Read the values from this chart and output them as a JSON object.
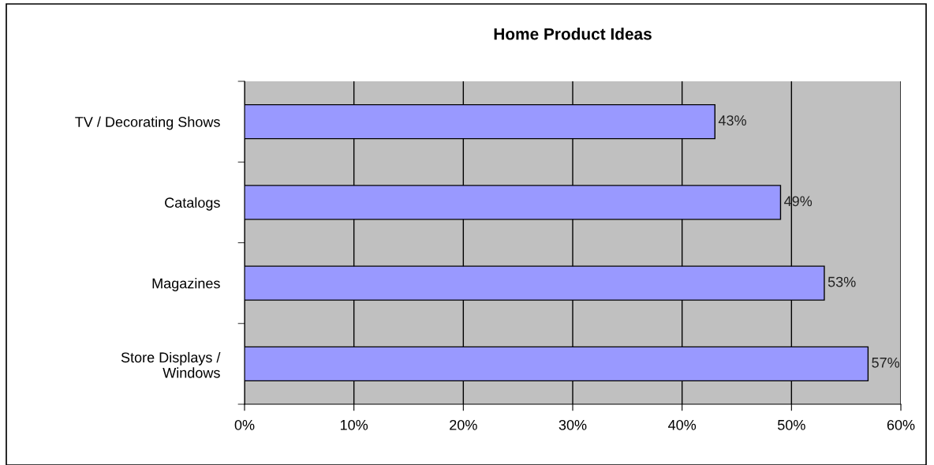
{
  "chart_data": {
    "type": "bar",
    "orientation": "horizontal",
    "title": "Home Product Ideas",
    "categories": [
      "TV / Decorating Shows",
      "Catalogs",
      "Magazines",
      "Store Displays /\nWindows"
    ],
    "values": [
      43,
      49,
      53,
      57
    ],
    "value_labels": [
      "43%",
      "49%",
      "53%",
      "57%"
    ],
    "color": "#9999ff",
    "xlim": [
      0,
      60
    ],
    "xticks": [
      {
        "value": 0,
        "label": "0%"
      },
      {
        "value": 10,
        "label": "10%"
      },
      {
        "value": 20,
        "label": "20%"
      },
      {
        "value": 30,
        "label": "30%"
      },
      {
        "value": 40,
        "label": "40%"
      },
      {
        "value": 50,
        "label": "50%"
      },
      {
        "value": 60,
        "label": "60%"
      }
    ],
    "grid": "x"
  }
}
